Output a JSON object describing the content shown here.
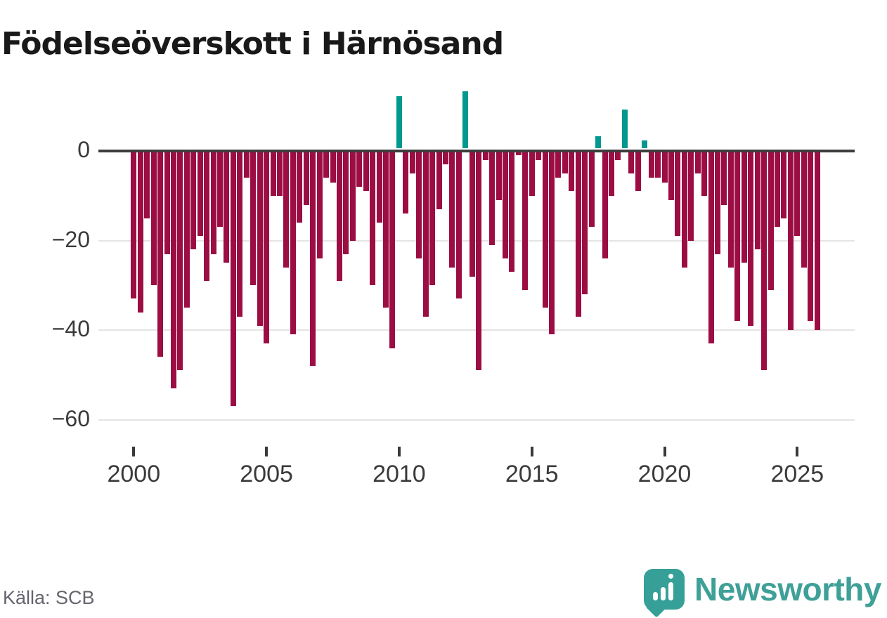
{
  "title": "Födelseöverskott i Härnösand",
  "source": "Källa: SCB",
  "logo": {
    "text": "Newsworthy",
    "icon": "bar-chart-speech-bubble-icon"
  },
  "colors": {
    "negative_bar": "#9b0d43",
    "positive_bar": "#00988f",
    "zero_line": "#3d3d3d",
    "gridline": "#e4e4e4",
    "title_text": "#191919",
    "axis_text": "#3a3a3a",
    "source_text": "#65656d",
    "logo_teal": "#3fa098"
  },
  "chart_data": {
    "type": "bar",
    "title": "Födelseöverskott i Härnösand",
    "x_start": "2000 Q1",
    "frequency": "quarterly",
    "xlabel": "",
    "ylabel": "",
    "grid": "horizontal",
    "legend": "none",
    "ylim": [
      -67,
      14
    ],
    "y_ticks": [
      0,
      -20,
      -40,
      -60
    ],
    "y_tick_labels": [
      "0",
      "−20",
      "−40",
      "−60"
    ],
    "x_tick_years": [
      2000,
      2005,
      2010,
      2015,
      2020,
      2025
    ],
    "positive_color": "#00988f",
    "negative_color": "#9b0d43",
    "values": [
      -33,
      -36,
      -15,
      -30,
      -46,
      -23,
      -53,
      -49,
      -35,
      -22,
      -19,
      -29,
      -23,
      -17,
      -25,
      -57,
      -37,
      -6,
      -30,
      -39,
      -43,
      -10,
      -10,
      -26,
      -41,
      -16,
      -12,
      -48,
      -24,
      -6,
      -7,
      -29,
      -23,
      -20,
      -8,
      -9,
      -30,
      -16,
      -35,
      -44,
      12,
      -14,
      -5,
      -24,
      -37,
      -30,
      -13,
      -3,
      -26,
      -33,
      13,
      -28,
      -49,
      -2,
      -21,
      -11,
      -24,
      -27,
      -1,
      -31,
      -10,
      -2,
      -35,
      -41,
      -6,
      -5,
      -9,
      -37,
      -32,
      -17,
      3,
      -24,
      -10,
      -2,
      9,
      -5,
      -9,
      2,
      -6,
      -6,
      -7,
      -11,
      -19,
      -26,
      -20,
      -5,
      -10,
      -43,
      -23,
      -12,
      -26,
      -38,
      -25,
      -39,
      -22,
      -49,
      -31,
      -17,
      -15,
      -40,
      -19,
      -26,
      -38,
      -40
    ]
  }
}
